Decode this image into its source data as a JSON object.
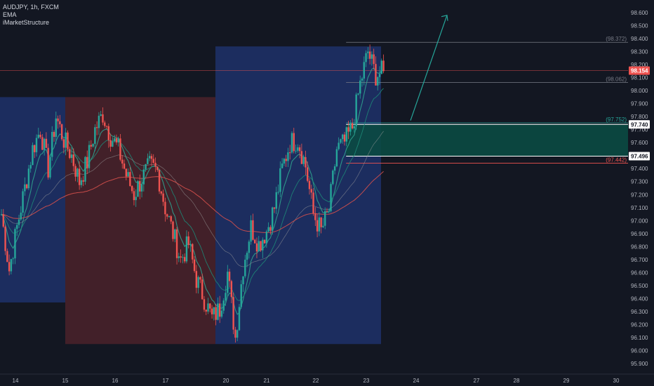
{
  "header": {
    "symbol_line": "AUDJPY, 1h, FXCM",
    "indicator_1": "EMA",
    "indicator_2": "iMarketStructure"
  },
  "colors": {
    "background": "#131722",
    "up_candle": "#26a69a",
    "down_candle": "#ef5350",
    "blue_zone": "#1c2e63",
    "red_zone": "#44212a",
    "ema_fast": "#2fa18e",
    "ema_mid": "#1d8a78",
    "ema_slow": "#9e9e9e",
    "ema_long": "#d6504b",
    "target_zone": "#0b4a43",
    "arrow": "#26a69a"
  },
  "chart_data": {
    "type": "candlestick",
    "timeframe": "1h",
    "y_axis": {
      "ylim": [
        95.86,
        98.62
      ],
      "ticks": [
        "95.900",
        "96.000",
        "96.100",
        "96.200",
        "96.300",
        "96.400",
        "96.500",
        "96.600",
        "96.700",
        "96.800",
        "96.900",
        "97.000",
        "97.100",
        "97.200",
        "97.300",
        "97.400",
        "97.500",
        "97.600",
        "97.700",
        "97.800",
        "97.900",
        "98.000",
        "98.100",
        "98.200",
        "98.300",
        "98.400",
        "98.500",
        "98.600"
      ]
    },
    "x_axis": {
      "ticks": [
        "14",
        "15",
        "16",
        "17",
        "20",
        "21",
        "22",
        "23",
        "24",
        "27",
        "28",
        "29",
        "30"
      ]
    },
    "current_price": "98.154",
    "price_tags": [
      {
        "label": "97.740",
        "style": "white"
      },
      {
        "label": "97.496",
        "style": "white"
      }
    ],
    "levels": [
      {
        "label": "(98.372)",
        "value": 98.372,
        "color": "#787b86"
      },
      {
        "label": "(98.062)",
        "value": 98.062,
        "color": "#787b86"
      },
      {
        "label": "(97.752)",
        "value": 97.752,
        "color": "#26a69a"
      },
      {
        "label": "(97.442)",
        "value": 97.442,
        "color": "#ef5350"
      }
    ],
    "target_zone": {
      "top": 97.74,
      "bottom": 97.496
    },
    "session_zones": [
      {
        "type": "bullish",
        "from_day": "13.8",
        "to_day": "15",
        "high": 97.95,
        "low": 96.37
      },
      {
        "type": "bearish",
        "from_day": "15",
        "to_day": "19.8",
        "high": 97.95,
        "low": 96.05
      },
      {
        "type": "bullish",
        "from_day": "19.8",
        "to_day": "23.3",
        "high": 98.34,
        "low": 96.05
      }
    ],
    "candle_close_path": [
      97.05,
      96.62,
      96.95,
      97.25,
      97.55,
      97.7,
      97.4,
      97.8,
      97.62,
      97.5,
      97.3,
      97.45,
      97.7,
      97.82,
      97.65,
      97.55,
      97.35,
      97.2,
      97.32,
      97.42,
      97.38,
      97.1,
      96.9,
      96.7,
      96.82,
      96.55,
      96.4,
      96.25,
      96.32,
      96.6,
      96.1,
      96.65,
      96.95,
      96.82,
      96.92,
      97.1,
      97.4,
      97.6,
      97.62,
      97.42,
      97.05,
      96.92,
      97.08,
      97.55,
      97.6,
      97.72,
      98.05,
      98.3,
      98.12,
      98.15
    ]
  }
}
